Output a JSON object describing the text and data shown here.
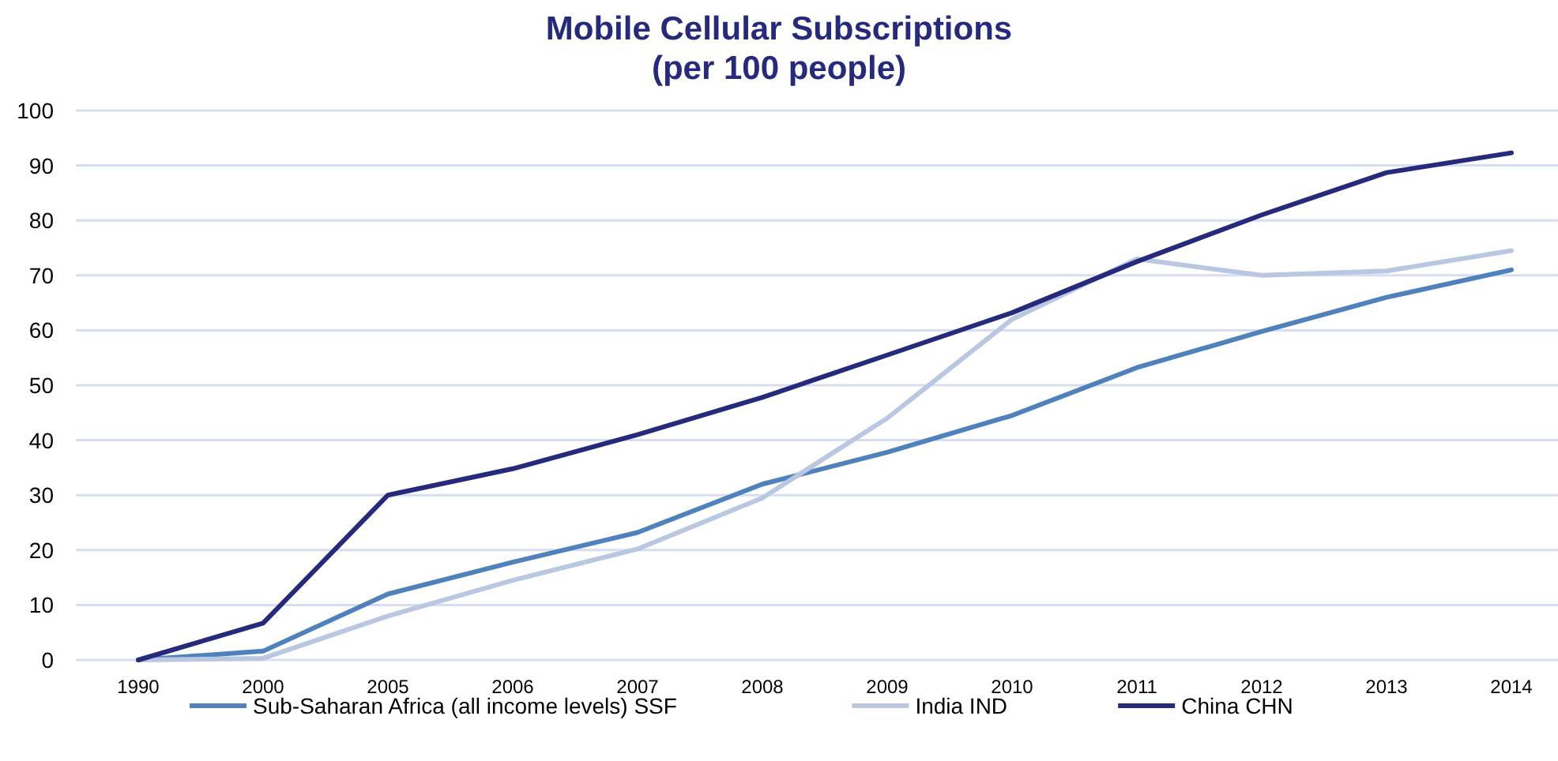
{
  "chart_data": {
    "type": "line",
    "title": "Mobile Cellular Subscriptions\n(per 100 people)",
    "categories": [
      "1990",
      "2000",
      "2005",
      "2006",
      "2007",
      "2008",
      "2009",
      "2010",
      "2011",
      "2012",
      "2013",
      "2014"
    ],
    "series": [
      {
        "name": "Sub-Saharan Africa (all income levels) SSF",
        "color": "#4f81bd",
        "values": [
          0,
          1.6,
          12,
          17.8,
          23.2,
          32,
          37.8,
          44.5,
          53.2,
          59.8,
          66,
          71
        ]
      },
      {
        "name": "India IND",
        "color": "#b9c7e0",
        "values": [
          0,
          0.3,
          8,
          14.5,
          20.2,
          29.5,
          44,
          62,
          73,
          70,
          70.8,
          74.5
        ]
      },
      {
        "name": "China CHN",
        "color": "#262a7c",
        "values": [
          0,
          6.7,
          30,
          34.8,
          41,
          47.8,
          55.5,
          63.2,
          72.5,
          81,
          88.7,
          92.3
        ]
      }
    ],
    "ylim": [
      0,
      100
    ],
    "yticks": [
      0,
      10,
      20,
      30,
      40,
      50,
      60,
      70,
      80,
      90,
      100
    ],
    "grid": "y",
    "legend": "bottom",
    "marker": "none",
    "line_style": "solid"
  }
}
